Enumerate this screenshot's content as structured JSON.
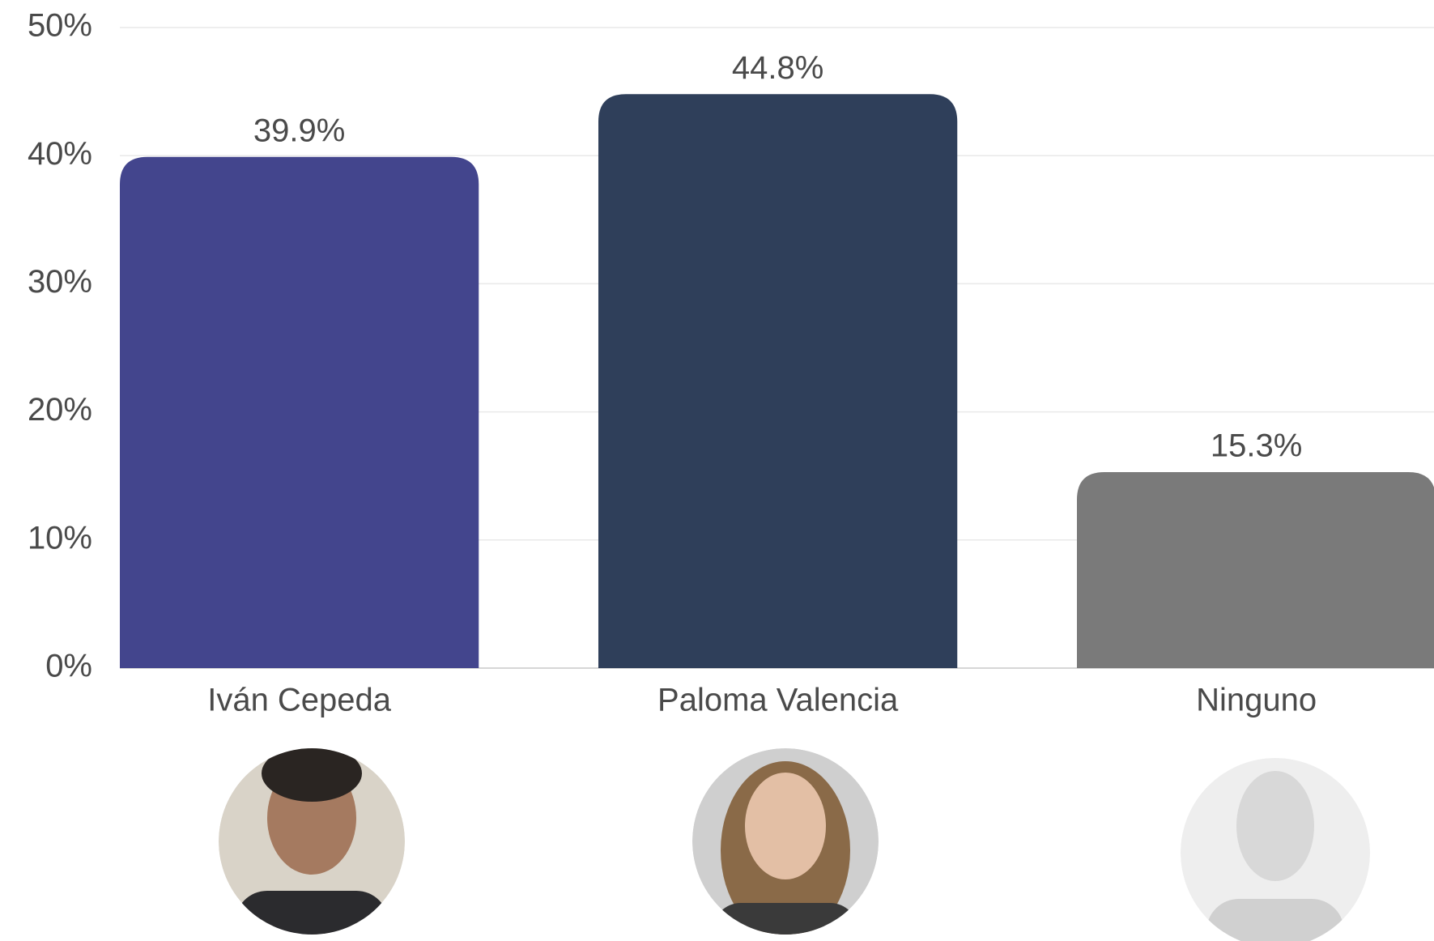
{
  "chart_data": {
    "type": "bar",
    "categories": [
      "Iván Cepeda",
      "Paloma Valencia",
      "Ninguno"
    ],
    "values": [
      39.9,
      44.8,
      15.3
    ],
    "value_labels": [
      "39.9%",
      "44.8%",
      "15.3%"
    ],
    "colors": [
      "#43458d",
      "#2f3f5a",
      "#7a7a7a"
    ],
    "ylim": [
      0,
      50
    ],
    "yticks": [
      {
        "value": 0,
        "label": "0%"
      },
      {
        "value": 10,
        "label": "10%"
      },
      {
        "value": 20,
        "label": "20%"
      },
      {
        "value": 30,
        "label": "30%"
      },
      {
        "value": 40,
        "label": "40%"
      },
      {
        "value": 50,
        "label": "50%"
      }
    ],
    "grid": true
  }
}
